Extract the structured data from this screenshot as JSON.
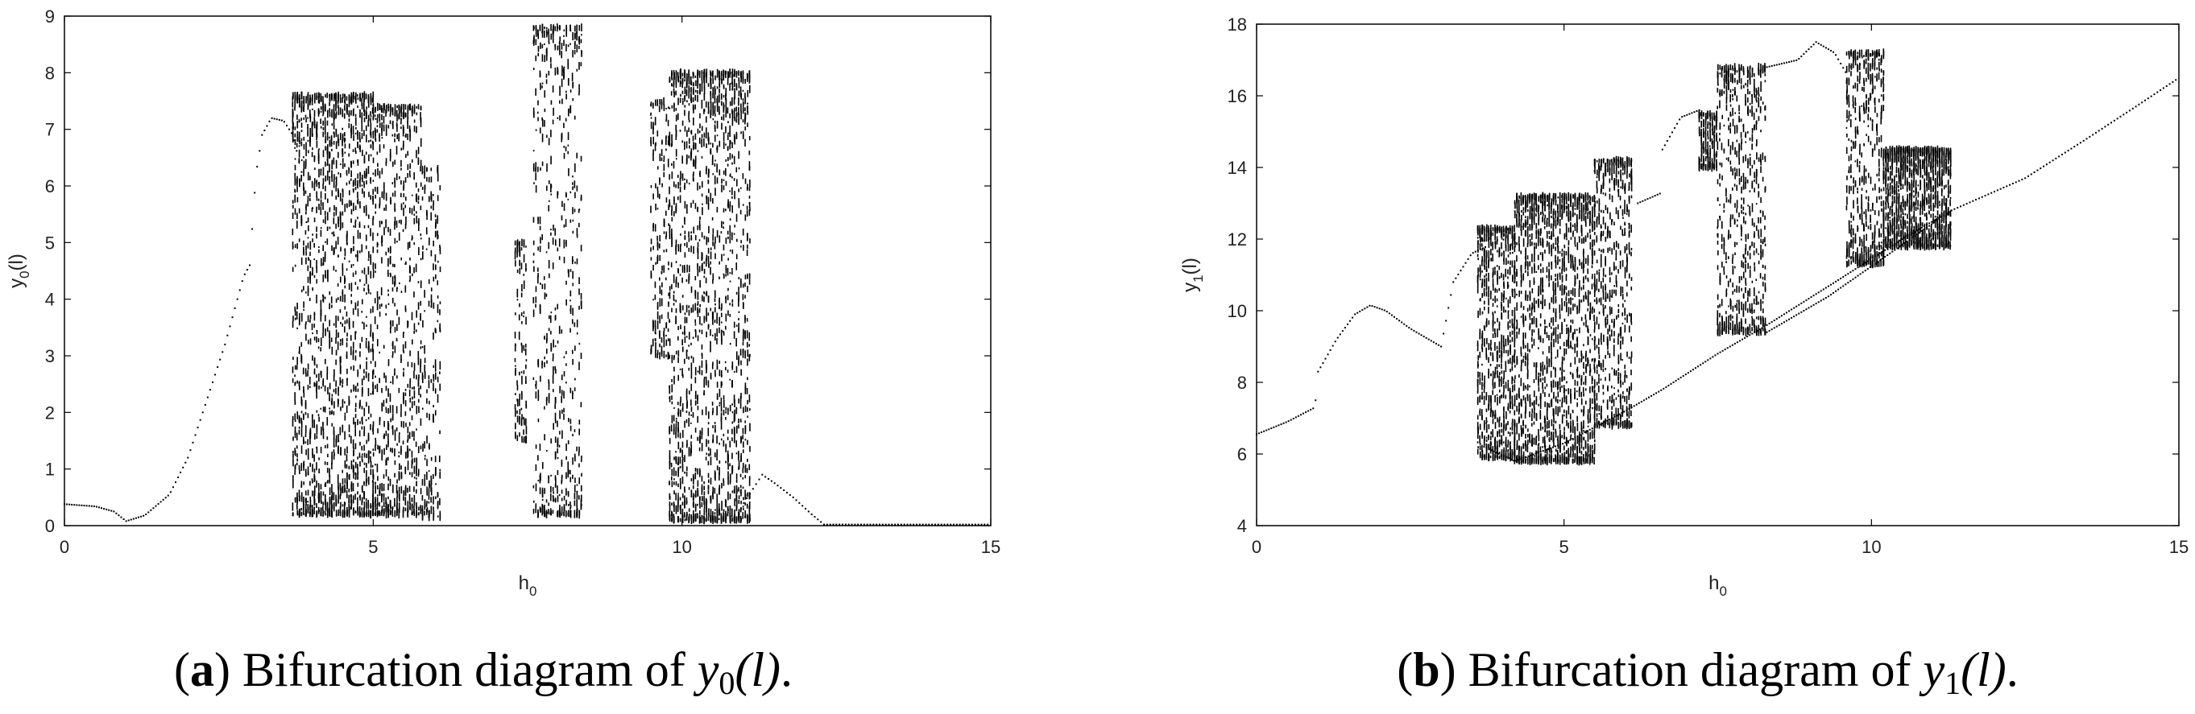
{
  "chart_data": [
    {
      "type": "scatter",
      "panel_label": "a",
      "caption": "Bifurcation diagram of y0(l).",
      "caption_prefix": "Bifurcation diagram of ",
      "caption_var": "y",
      "caption_sub": "0",
      "caption_arg": "(l)",
      "caption_end": ".",
      "xlabel_base": "h",
      "xlabel_sub": "0",
      "ylabel_base": "y",
      "ylabel_sub": "0",
      "ylabel_arg": "(l)",
      "xlim": [
        0,
        15
      ],
      "ylim": [
        0,
        9
      ],
      "xticks": [
        "0",
        "5",
        "10",
        "15"
      ],
      "yticks": [
        "0",
        "1",
        "2",
        "3",
        "4",
        "5",
        "6",
        "7",
        "8",
        "9"
      ],
      "grid": false,
      "periodic_branch": [
        [
          0,
          0.38
        ],
        [
          0.5,
          0.34
        ],
        [
          0.8,
          0.25
        ],
        [
          1.0,
          0.08
        ],
        [
          1.3,
          0.18
        ],
        [
          1.7,
          0.55
        ],
        [
          2.0,
          1.2
        ],
        [
          2.3,
          2.2
        ],
        [
          2.6,
          3.2
        ],
        [
          2.9,
          4.4
        ],
        [
          3.0,
          4.6
        ],
        [
          3.1,
          6.2
        ],
        [
          3.2,
          6.9
        ],
        [
          3.35,
          7.2
        ],
        [
          3.55,
          7.15
        ],
        [
          3.7,
          6.9
        ],
        [
          3.85,
          6.2
        ],
        [
          3.95,
          5.0
        ],
        [
          4.0,
          3.5
        ]
      ],
      "bands": [
        {
          "x": [
            3.7,
            5.0
          ],
          "ymin": 0.2,
          "ymax": 7.6,
          "density": 0.6
        },
        {
          "x": [
            5.0,
            5.8
          ],
          "ymin": 0.2,
          "ymax": 7.4,
          "density": 0.45
        },
        {
          "x": [
            5.8,
            6.1
          ],
          "ymin": 0.15,
          "ymax": 6.3,
          "density": 0.3
        },
        {
          "x": [
            7.3,
            7.5
          ],
          "ymin": 1.5,
          "ymax": 5.0,
          "density": 0.25
        },
        {
          "x": [
            7.6,
            8.4
          ],
          "ymin": 0.2,
          "ymax": 8.8,
          "density": 0.35
        },
        {
          "x": [
            9.5,
            9.8
          ],
          "ymin": 3.0,
          "ymax": 7.5,
          "density": 0.25
        },
        {
          "x": [
            9.8,
            11.1
          ],
          "ymin": 0.1,
          "ymax": 8.0,
          "density": 0.6
        }
      ],
      "tail_branch": [
        [
          11.0,
          0.4
        ],
        [
          11.3,
          0.9
        ],
        [
          11.5,
          0.75
        ],
        [
          11.8,
          0.5
        ],
        [
          12.1,
          0.2
        ],
        [
          12.3,
          0.02
        ],
        [
          15.0,
          0.02
        ]
      ]
    },
    {
      "type": "scatter",
      "panel_label": "b",
      "caption": "Bifurcation diagram of y1(l).",
      "caption_prefix": "Bifurcation diagram of ",
      "caption_var": "y",
      "caption_sub": "1",
      "caption_arg": "(l)",
      "caption_end": ".",
      "xlabel_base": "h",
      "xlabel_sub": "0",
      "ylabel_base": "y",
      "ylabel_sub": "1",
      "ylabel_arg": "(l)",
      "xlim": [
        0,
        15
      ],
      "ylim": [
        4,
        18
      ],
      "xticks": [
        "0",
        "5",
        "10",
        "15"
      ],
      "yticks": [
        "4",
        "6",
        "8",
        "10",
        "12",
        "14",
        "16",
        "18"
      ],
      "grid": false,
      "periodic_branch": [
        [
          0,
          6.55
        ],
        [
          0.5,
          6.9
        ],
        [
          0.95,
          7.3
        ],
        [
          1.0,
          8.3
        ],
        [
          1.3,
          9.2
        ],
        [
          1.6,
          9.9
        ],
        [
          1.85,
          10.15
        ],
        [
          2.1,
          10.0
        ],
        [
          2.5,
          9.5
        ],
        [
          3.0,
          9.0
        ],
        [
          3.2,
          10.8
        ],
        [
          3.5,
          11.6
        ],
        [
          3.75,
          11.8
        ]
      ],
      "bands": [
        {
          "x": [
            3.6,
            4.2
          ],
          "ymin": 5.9,
          "ymax": 12.3,
          "density": 0.55
        },
        {
          "x": [
            4.2,
            5.5
          ],
          "ymin": 5.8,
          "ymax": 13.2,
          "density": 0.6
        },
        {
          "x": [
            5.5,
            6.1
          ],
          "ymin": 6.8,
          "ymax": 14.2,
          "density": 0.45
        },
        {
          "x": [
            7.2,
            7.5
          ],
          "ymin": 14.0,
          "ymax": 15.5,
          "density": 0.25
        },
        {
          "x": [
            7.5,
            8.3
          ],
          "ymin": 9.4,
          "ymax": 16.8,
          "density": 0.4
        },
        {
          "x": [
            9.6,
            10.2
          ],
          "ymin": 11.3,
          "ymax": 17.2,
          "density": 0.4
        },
        {
          "x": [
            10.2,
            11.3
          ],
          "ymin": 11.8,
          "ymax": 14.5,
          "density": 0.55
        }
      ],
      "tail_branch": [
        [
          11.3,
          12.8
        ],
        [
          12.5,
          13.7
        ],
        [
          13.5,
          14.8
        ],
        [
          14.3,
          15.7
        ],
        [
          15.0,
          16.5
        ]
      ],
      "aux_branches": [
        [
          [
            3.7,
            6.2
          ],
          [
            4.2,
            5.8
          ],
          [
            5.0,
            6.3
          ],
          [
            6.0,
            7.2
          ],
          [
            6.6,
            7.8
          ],
          [
            7.5,
            8.8
          ],
          [
            8.3,
            9.6
          ],
          [
            9.5,
            10.9
          ],
          [
            10.5,
            12.0
          ],
          [
            11.3,
            12.8
          ]
        ],
        [
          [
            8.3,
            9.4
          ],
          [
            9.3,
            10.4
          ],
          [
            10.3,
            11.6
          ],
          [
            11.3,
            12.8
          ]
        ],
        [
          [
            6.2,
            13.0
          ],
          [
            6.6,
            13.3
          ]
        ],
        [
          [
            6.6,
            14.5
          ],
          [
            6.9,
            15.4
          ],
          [
            7.2,
            15.6
          ]
        ],
        [
          [
            8.3,
            16.8
          ],
          [
            8.8,
            17.0
          ],
          [
            9.1,
            17.5
          ],
          [
            9.4,
            17.2
          ],
          [
            9.6,
            16.6
          ]
        ]
      ]
    }
  ]
}
